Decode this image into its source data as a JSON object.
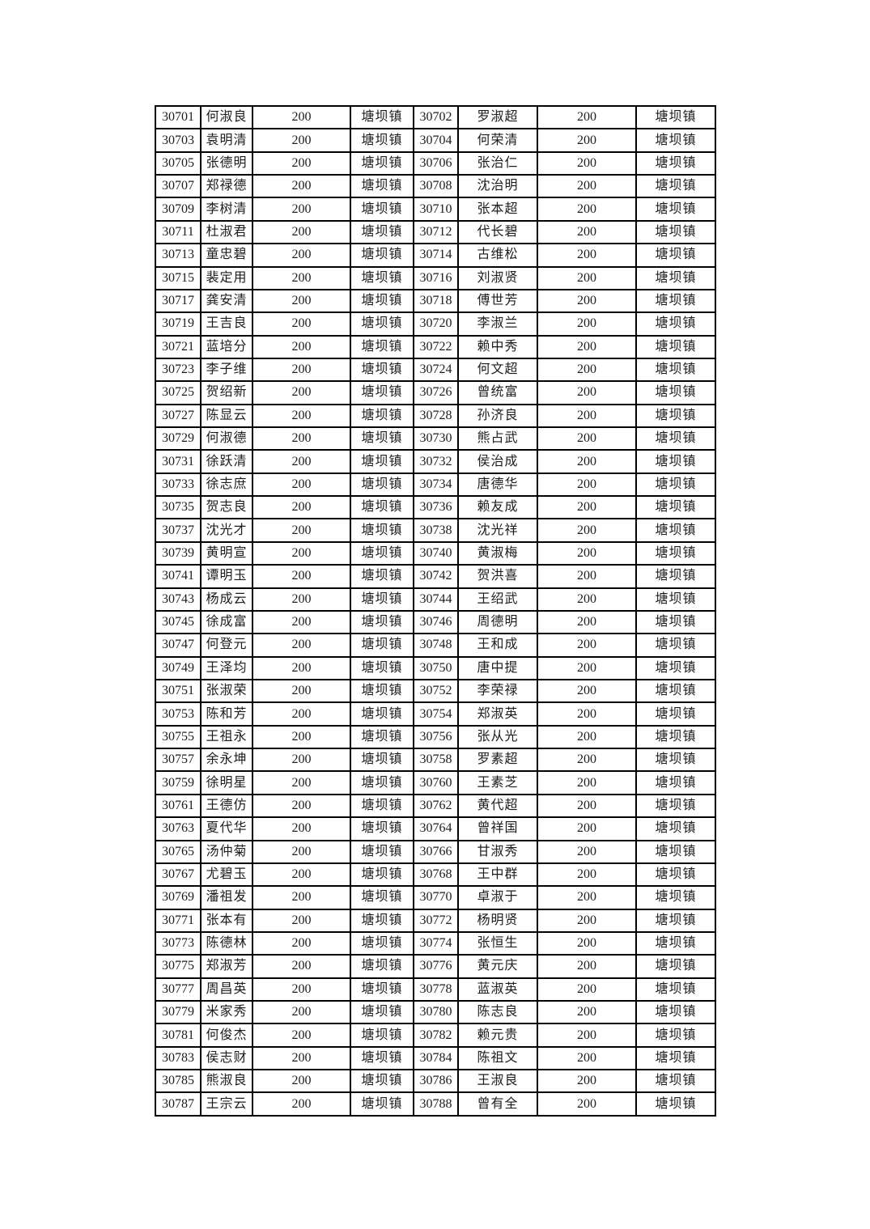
{
  "page": {
    "background_color": "#ffffff",
    "text_color": "#1c1c1c",
    "border_color": "#000000"
  },
  "table": {
    "rows": [
      [
        "30701",
        "何淑良",
        "200",
        "塘坝镇",
        "30702",
        "罗淑超",
        "200",
        "塘坝镇"
      ],
      [
        "30703",
        "袁明清",
        "200",
        "塘坝镇",
        "30704",
        "何荣清",
        "200",
        "塘坝镇"
      ],
      [
        "30705",
        "张德明",
        "200",
        "塘坝镇",
        "30706",
        "张治仁",
        "200",
        "塘坝镇"
      ],
      [
        "30707",
        "郑禄德",
        "200",
        "塘坝镇",
        "30708",
        "沈治明",
        "200",
        "塘坝镇"
      ],
      [
        "30709",
        "李树清",
        "200",
        "塘坝镇",
        "30710",
        "张本超",
        "200",
        "塘坝镇"
      ],
      [
        "30711",
        "杜淑君",
        "200",
        "塘坝镇",
        "30712",
        "代长碧",
        "200",
        "塘坝镇"
      ],
      [
        "30713",
        "童忠碧",
        "200",
        "塘坝镇",
        "30714",
        "古维松",
        "200",
        "塘坝镇"
      ],
      [
        "30715",
        "裴定用",
        "200",
        "塘坝镇",
        "30716",
        "刘淑贤",
        "200",
        "塘坝镇"
      ],
      [
        "30717",
        "龚安清",
        "200",
        "塘坝镇",
        "30718",
        "傅世芳",
        "200",
        "塘坝镇"
      ],
      [
        "30719",
        "王吉良",
        "200",
        "塘坝镇",
        "30720",
        "李淑兰",
        "200",
        "塘坝镇"
      ],
      [
        "30721",
        "蓝培分",
        "200",
        "塘坝镇",
        "30722",
        "赖中秀",
        "200",
        "塘坝镇"
      ],
      [
        "30723",
        "李子维",
        "200",
        "塘坝镇",
        "30724",
        "何文超",
        "200",
        "塘坝镇"
      ],
      [
        "30725",
        "贺绍新",
        "200",
        "塘坝镇",
        "30726",
        "曾统富",
        "200",
        "塘坝镇"
      ],
      [
        "30727",
        "陈显云",
        "200",
        "塘坝镇",
        "30728",
        "孙济良",
        "200",
        "塘坝镇"
      ],
      [
        "30729",
        "何淑德",
        "200",
        "塘坝镇",
        "30730",
        "熊占武",
        "200",
        "塘坝镇"
      ],
      [
        "30731",
        "徐跃清",
        "200",
        "塘坝镇",
        "30732",
        "侯治成",
        "200",
        "塘坝镇"
      ],
      [
        "30733",
        "徐志庶",
        "200",
        "塘坝镇",
        "30734",
        "唐德华",
        "200",
        "塘坝镇"
      ],
      [
        "30735",
        "贺志良",
        "200",
        "塘坝镇",
        "30736",
        "赖友成",
        "200",
        "塘坝镇"
      ],
      [
        "30737",
        "沈光才",
        "200",
        "塘坝镇",
        "30738",
        "沈光祥",
        "200",
        "塘坝镇"
      ],
      [
        "30739",
        "黄明宣",
        "200",
        "塘坝镇",
        "30740",
        "黄淑梅",
        "200",
        "塘坝镇"
      ],
      [
        "30741",
        "谭明玉",
        "200",
        "塘坝镇",
        "30742",
        "贺洪喜",
        "200",
        "塘坝镇"
      ],
      [
        "30743",
        "杨成云",
        "200",
        "塘坝镇",
        "30744",
        "王绍武",
        "200",
        "塘坝镇"
      ],
      [
        "30745",
        "徐成富",
        "200",
        "塘坝镇",
        "30746",
        "周德明",
        "200",
        "塘坝镇"
      ],
      [
        "30747",
        "何登元",
        "200",
        "塘坝镇",
        "30748",
        "王和成",
        "200",
        "塘坝镇"
      ],
      [
        "30749",
        "王泽均",
        "200",
        "塘坝镇",
        "30750",
        "唐中提",
        "200",
        "塘坝镇"
      ],
      [
        "30751",
        "张淑荣",
        "200",
        "塘坝镇",
        "30752",
        "李荣禄",
        "200",
        "塘坝镇"
      ],
      [
        "30753",
        "陈和芳",
        "200",
        "塘坝镇",
        "30754",
        "郑淑英",
        "200",
        "塘坝镇"
      ],
      [
        "30755",
        "王祖永",
        "200",
        "塘坝镇",
        "30756",
        "张从光",
        "200",
        "塘坝镇"
      ],
      [
        "30757",
        "余永坤",
        "200",
        "塘坝镇",
        "30758",
        "罗素超",
        "200",
        "塘坝镇"
      ],
      [
        "30759",
        "徐明星",
        "200",
        "塘坝镇",
        "30760",
        "王素芝",
        "200",
        "塘坝镇"
      ],
      [
        "30761",
        "王德仿",
        "200",
        "塘坝镇",
        "30762",
        "黄代超",
        "200",
        "塘坝镇"
      ],
      [
        "30763",
        "夏代华",
        "200",
        "塘坝镇",
        "30764",
        "曾祥国",
        "200",
        "塘坝镇"
      ],
      [
        "30765",
        "汤仲菊",
        "200",
        "塘坝镇",
        "30766",
        "甘淑秀",
        "200",
        "塘坝镇"
      ],
      [
        "30767",
        "尤碧玉",
        "200",
        "塘坝镇",
        "30768",
        "王中群",
        "200",
        "塘坝镇"
      ],
      [
        "30769",
        "潘祖发",
        "200",
        "塘坝镇",
        "30770",
        "卓淑于",
        "200",
        "塘坝镇"
      ],
      [
        "30771",
        "张本有",
        "200",
        "塘坝镇",
        "30772",
        "杨明贤",
        "200",
        "塘坝镇"
      ],
      [
        "30773",
        "陈德林",
        "200",
        "塘坝镇",
        "30774",
        "张恒生",
        "200",
        "塘坝镇"
      ],
      [
        "30775",
        "郑淑芳",
        "200",
        "塘坝镇",
        "30776",
        "黄元庆",
        "200",
        "塘坝镇"
      ],
      [
        "30777",
        "周昌英",
        "200",
        "塘坝镇",
        "30778",
        "蓝淑英",
        "200",
        "塘坝镇"
      ],
      [
        "30779",
        "米家秀",
        "200",
        "塘坝镇",
        "30780",
        "陈志良",
        "200",
        "塘坝镇"
      ],
      [
        "30781",
        "何俊杰",
        "200",
        "塘坝镇",
        "30782",
        "赖元贵",
        "200",
        "塘坝镇"
      ],
      [
        "30783",
        "侯志财",
        "200",
        "塘坝镇",
        "30784",
        "陈祖文",
        "200",
        "塘坝镇"
      ],
      [
        "30785",
        "熊淑良",
        "200",
        "塘坝镇",
        "30786",
        "王淑良",
        "200",
        "塘坝镇"
      ],
      [
        "30787",
        "王宗云",
        "200",
        "塘坝镇",
        "30788",
        "曾有全",
        "200",
        "塘坝镇"
      ]
    ]
  }
}
